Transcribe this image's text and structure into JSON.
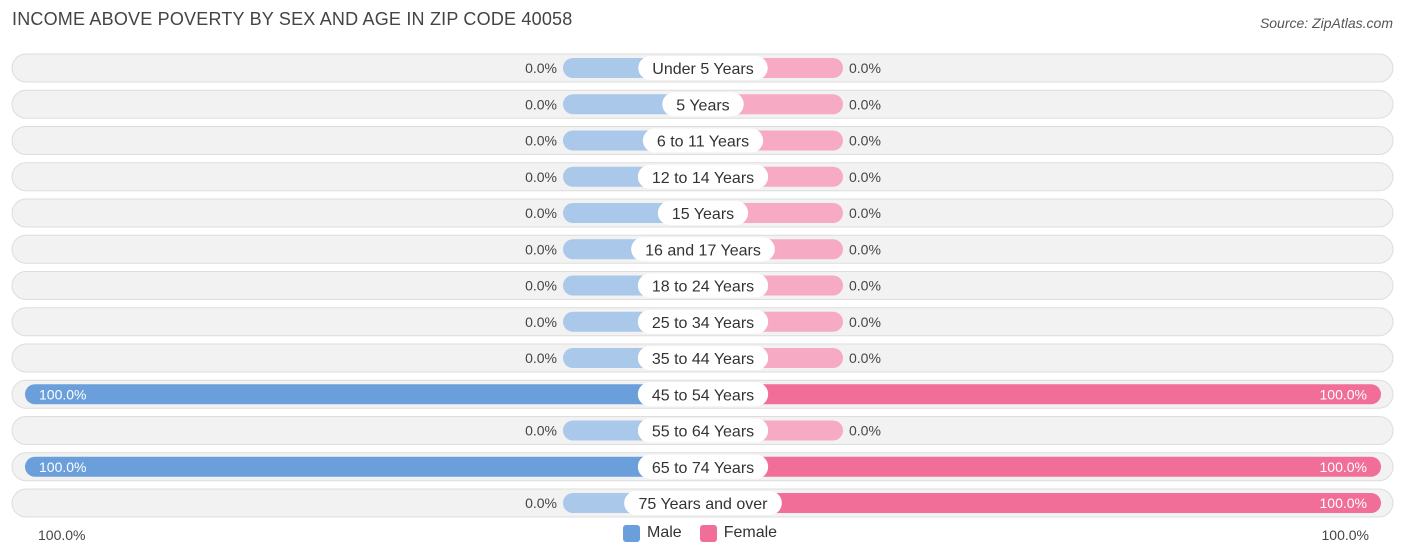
{
  "title": "INCOME ABOVE POVERTY BY SEX AND AGE IN ZIP CODE 40058",
  "source": "Source: ZipAtlas.com",
  "colors": {
    "male_full": "#6a9fdb",
    "male_stub": "#aac8ea",
    "female_full": "#f06e98",
    "female_stub": "#f6aac4"
  },
  "legend": {
    "male": "Male",
    "female": "Female"
  },
  "axis": {
    "left_label": "100.0%",
    "right_label": "100.0%"
  },
  "chart_data": {
    "type": "bar",
    "orientation": "horizontal-diverging",
    "title": "INCOME ABOVE POVERTY BY SEX AND AGE IN ZIP CODE 40058",
    "unit": "%",
    "xlim": [
      -100,
      100
    ],
    "categories": [
      "Under 5 Years",
      "5 Years",
      "6 to 11 Years",
      "12 to 14 Years",
      "15 Years",
      "16 and 17 Years",
      "18 to 24 Years",
      "25 to 34 Years",
      "35 to 44 Years",
      "45 to 54 Years",
      "55 to 64 Years",
      "65 to 74 Years",
      "75 Years and over"
    ],
    "series": [
      {
        "name": "Male",
        "values": [
          0.0,
          0.0,
          0.0,
          0.0,
          0.0,
          0.0,
          0.0,
          0.0,
          0.0,
          100.0,
          0.0,
          100.0,
          0.0
        ],
        "labels": [
          "0.0%",
          "0.0%",
          "0.0%",
          "0.0%",
          "0.0%",
          "0.0%",
          "0.0%",
          "0.0%",
          "0.0%",
          "100.0%",
          "0.0%",
          "100.0%",
          "0.0%"
        ]
      },
      {
        "name": "Female",
        "values": [
          0.0,
          0.0,
          0.0,
          0.0,
          0.0,
          0.0,
          0.0,
          0.0,
          0.0,
          100.0,
          0.0,
          100.0,
          100.0
        ],
        "labels": [
          "0.0%",
          "0.0%",
          "0.0%",
          "0.0%",
          "0.0%",
          "0.0%",
          "0.0%",
          "0.0%",
          "0.0%",
          "100.0%",
          "0.0%",
          "100.0%",
          "100.0%"
        ]
      }
    ]
  }
}
